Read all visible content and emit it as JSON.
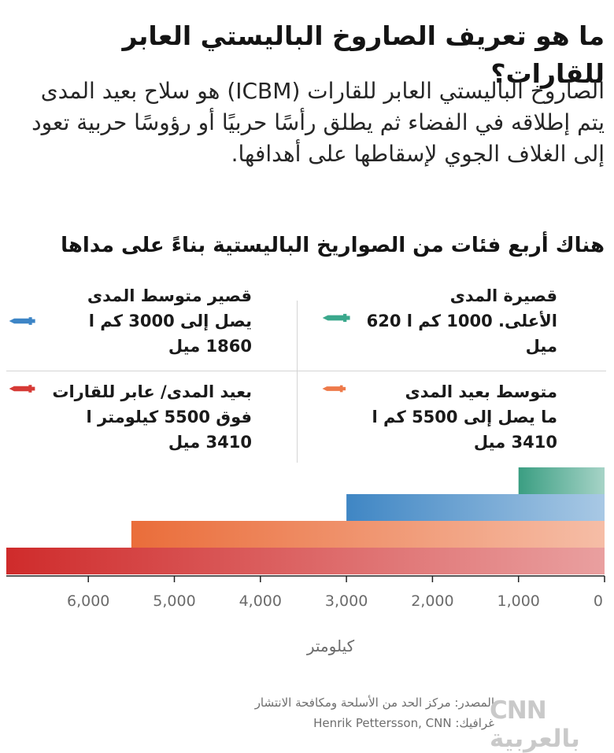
{
  "header": {
    "title": "ما هو تعريف الصاروخ الباليستي العابر للقارات؟",
    "intro": "الصاروخ الباليستي العابر للقارات (ICBM) هو سلاح بعيد المدى يتم إطلاقه في الفضاء ثم يطلق رأسًا حربيًا أو رؤوسًا حربية تعود إلى الغلاف الجوي لإسقاطها على أهدافها.",
    "subtitle": "هناك أربع فئات من الصواريخ الباليستية بناءً على مداها"
  },
  "legend": {
    "items": [
      {
        "name": "قصيرة المدى",
        "desc": "الأعلى. 1000 كم ا 620 ميل",
        "icon": "green-missile-icon",
        "color": "#3aa88c"
      },
      {
        "name": "قصير متوسط المدى",
        "desc": "يصل إلى 3000 كم ا 1860 ميل",
        "icon": "blue-missile-icon",
        "color": "#3d85c6"
      },
      {
        "name": "متوسط بعيد المدى",
        "desc": "ما يصل إلى 5500 كم ا 3410 ميل",
        "icon": "orange-missile-icon",
        "color": "#ee7a4a"
      },
      {
        "name": "بعيد المدى/ عابر للقارات",
        "desc": "فوق 5500 كيلومتر ا 3410 ميل",
        "icon": "red-missile-icon",
        "color": "#d63a36"
      }
    ]
  },
  "chart_data": {
    "type": "bar",
    "orientation": "horizontal",
    "direction": "right-to-left",
    "categories": [
      "قصيرة المدى",
      "قصير متوسط المدى",
      "متوسط بعيد المدى",
      "بعيد المدى/ عابر للقارات"
    ],
    "values": [
      1000,
      3000,
      5500,
      7000
    ],
    "colors": [
      "#3a9e82",
      "#3f86c4",
      "#ea6d3a",
      "#cf2b2b"
    ],
    "xlim": [
      0,
      7000
    ],
    "ticks": [
      0,
      1000,
      2000,
      3000,
      4000,
      5000,
      6000
    ],
    "tick_labels": [
      "0",
      "1,000",
      "2,000",
      "3,000",
      "4,000",
      "5,000",
      "6,000"
    ],
    "xlabel": "كيلومتر",
    "grid": false
  },
  "footer": {
    "source": "المصدر: مركز الحد من الأسلحة ومكافحة الانتشار",
    "credit": "غرافيك: Henrik Pettersson, CNN",
    "logo": "CNN بالعربية"
  }
}
